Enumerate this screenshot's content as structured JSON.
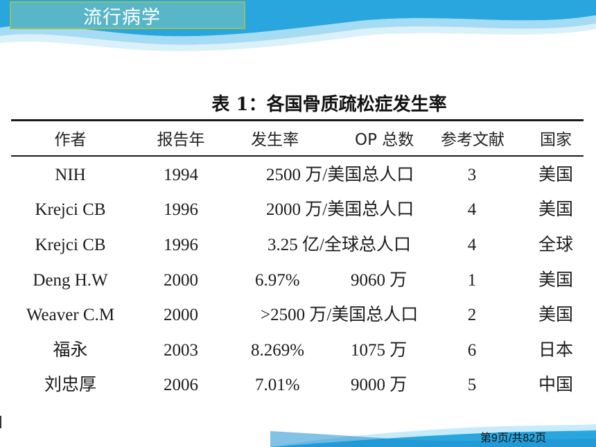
{
  "slide": {
    "title": "流行病学",
    "page_number": "第9页/共82页"
  },
  "table": {
    "caption": "表 1：各国骨质疏松症发生率",
    "headers": {
      "author": "作者",
      "year": "报告年",
      "rate": "发生率",
      "op_total": "OP 总数",
      "reference": "参考文献",
      "country": "国家"
    },
    "rows": [
      {
        "author": "NIH",
        "year": "1994",
        "rate": "2500 万/美国总人口",
        "op_total": "",
        "reference": "3",
        "country": "美国"
      },
      {
        "author": "Krejci CB",
        "year": "1996",
        "rate": "2000 万/美国总人口",
        "op_total": "",
        "reference": "4",
        "country": "美国"
      },
      {
        "author": "Krejci CB",
        "year": "1996",
        "rate": "3.25 亿/全球总人口",
        "op_total": "",
        "reference": "4",
        "country": "全球"
      },
      {
        "author": "Deng H.W",
        "year": "2000",
        "rate": "6.97%",
        "op_total": "9060 万",
        "reference": "1",
        "country": "美国"
      },
      {
        "author": "Weaver C.M",
        "year": "2000",
        "rate": ">2500 万/美国总人口",
        "op_total": "",
        "reference": "2",
        "country": "美国"
      },
      {
        "author": "福永",
        "year": "2003",
        "rate": "8.269%",
        "op_total": "1075 万",
        "reference": "6",
        "country": "日本"
      },
      {
        "author": "刘忠厚",
        "year": "2006",
        "rate": "7.01%",
        "op_total": "9000 万",
        "reference": "5",
        "country": "中国"
      }
    ]
  },
  "colors": {
    "title_box": "#59b6c8",
    "title_border": "#8fbf6a",
    "wave": "#2aa6de"
  }
}
